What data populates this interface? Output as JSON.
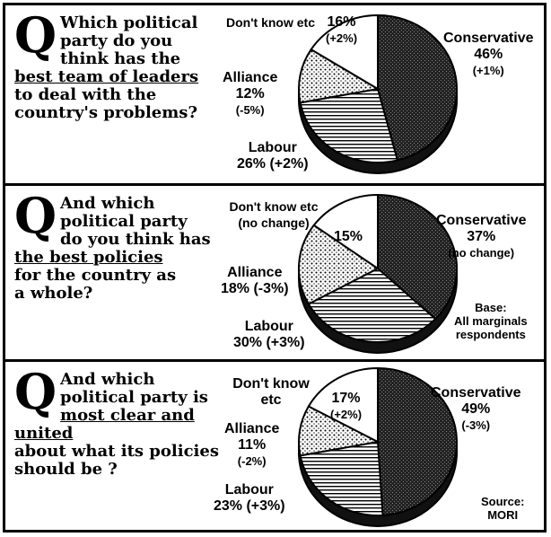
{
  "chart_data": [
    {
      "type": "pie",
      "question": {
        "letter": "Q",
        "lines": [
          "Which political",
          "party do you",
          "think has the",
          "best team of leaders",
          "to deal with the",
          "country's problems?"
        ],
        "underline_index": 3
      },
      "slices": [
        {
          "name": "Conservative",
          "value": 46,
          "value_label": "46%",
          "change": "(+1%)",
          "pattern": "dark"
        },
        {
          "name": "Labour",
          "value": 26,
          "value_label": "26% (+2%)",
          "change": "",
          "pattern": "lines"
        },
        {
          "name": "Alliance",
          "value": 12,
          "value_label": "12%",
          "change": "(-5%)",
          "pattern": "dots"
        },
        {
          "name": "Don't know etc",
          "value": 16,
          "value_label": "16%",
          "change": "(+2%)",
          "pattern": "white"
        }
      ],
      "notes": []
    },
    {
      "type": "pie",
      "question": {
        "letter": "Q",
        "lines": [
          "And which",
          "political party",
          "do you think has",
          "the best policies",
          "for the country as",
          "a whole?"
        ],
        "underline_index": 3,
        "underline_word": "best policies"
      },
      "slices": [
        {
          "name": "Conservative",
          "value": 37,
          "value_label": "37%",
          "change": "(no change)",
          "pattern": "dark"
        },
        {
          "name": "Labour",
          "value": 30,
          "value_label": "30% (+3%)",
          "change": "",
          "pattern": "lines"
        },
        {
          "name": "Alliance",
          "value": 18,
          "value_label": "18% (-3%)",
          "change": "",
          "pattern": "dots"
        },
        {
          "name": "Don't know etc (no change)",
          "value": 15,
          "value_label": "15%",
          "change": "",
          "pattern": "white"
        }
      ],
      "notes": [
        "Base:",
        "All marginals",
        "respondents"
      ]
    },
    {
      "type": "pie",
      "question": {
        "letter": "Q",
        "lines": [
          "And which",
          "political party is",
          "most clear and united",
          "about what its policies",
          "should be ?"
        ],
        "underline_index": 2
      },
      "slices": [
        {
          "name": "Conservative",
          "value": 49,
          "value_label": "49%",
          "change": "(-3%)",
          "pattern": "dark"
        },
        {
          "name": "Labour",
          "value": 23,
          "value_label": "23% (+3%)",
          "change": "",
          "pattern": "lines"
        },
        {
          "name": "Alliance",
          "value": 11,
          "value_label": "11%",
          "change": "(-2%)",
          "pattern": "dots"
        },
        {
          "name": "Don't know etc",
          "value": 17,
          "value_label": "17%",
          "change": "(+2%)",
          "pattern": "white"
        }
      ],
      "notes": [
        "Source:",
        "MORI"
      ]
    }
  ]
}
